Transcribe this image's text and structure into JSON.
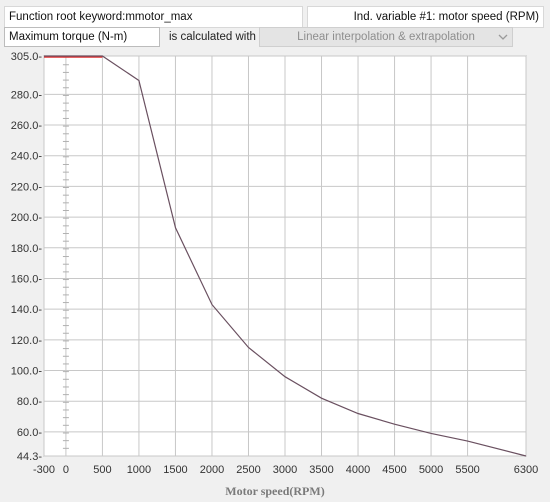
{
  "header": {
    "root_keyword_label": "Function root keyword:",
    "root_keyword_value": "mmotor_max",
    "ind_variable_label": "Ind. variable #1:",
    "ind_variable_value": "motor speed (RPM)"
  },
  "controls": {
    "dependent_value": "Maximum torque (N-m)",
    "calc_label": "is calculated with",
    "method_value": "Linear interpolation & extrapolation"
  },
  "chart_data": {
    "type": "line",
    "xlabel": "Motor speed(RPM)",
    "ylabel": "",
    "xlim": [
      -300,
      6300
    ],
    "ylim": [
      44.3,
      305.0
    ],
    "x_ticks": [
      -300,
      0,
      500,
      1000,
      1500,
      2000,
      2500,
      3000,
      3500,
      4000,
      4500,
      5000,
      5500,
      6300
    ],
    "x_tick_labels": [
      "-300",
      "0",
      "500",
      "1000",
      "1500",
      "2000",
      "2500",
      "3000",
      "3500",
      "4000",
      "4500",
      "5000",
      "5500",
      "6300"
    ],
    "y_ticks": [
      44.3,
      60,
      80,
      100,
      120,
      140,
      160,
      180,
      200,
      220,
      240,
      260,
      280,
      305
    ],
    "y_tick_labels": [
      "44.3",
      "60.0",
      "80.0",
      "100.0",
      "120.0",
      "140.0",
      "160.0",
      "180.0",
      "200.0",
      "220.0",
      "240.0",
      "260.0",
      "280.0",
      "305.0"
    ],
    "grid": true,
    "series": [
      {
        "x": [
          -300,
          0,
          500,
          1000,
          1500,
          2000,
          2500,
          3000,
          3500,
          4000,
          4500,
          5000,
          5500,
          6300
        ],
        "y": [
          305.0,
          305.0,
          305.0,
          289.0,
          193.0,
          143.0,
          115.0,
          96.0,
          82.0,
          72.0,
          65.0,
          59.0,
          54.0,
          44.3
        ]
      }
    ]
  },
  "colors": {
    "background": "#f0f0f0",
    "plot_background": "#ffffff",
    "grid": "#c8c8c8",
    "line": "#6a5060",
    "red_line": "#e03030"
  }
}
